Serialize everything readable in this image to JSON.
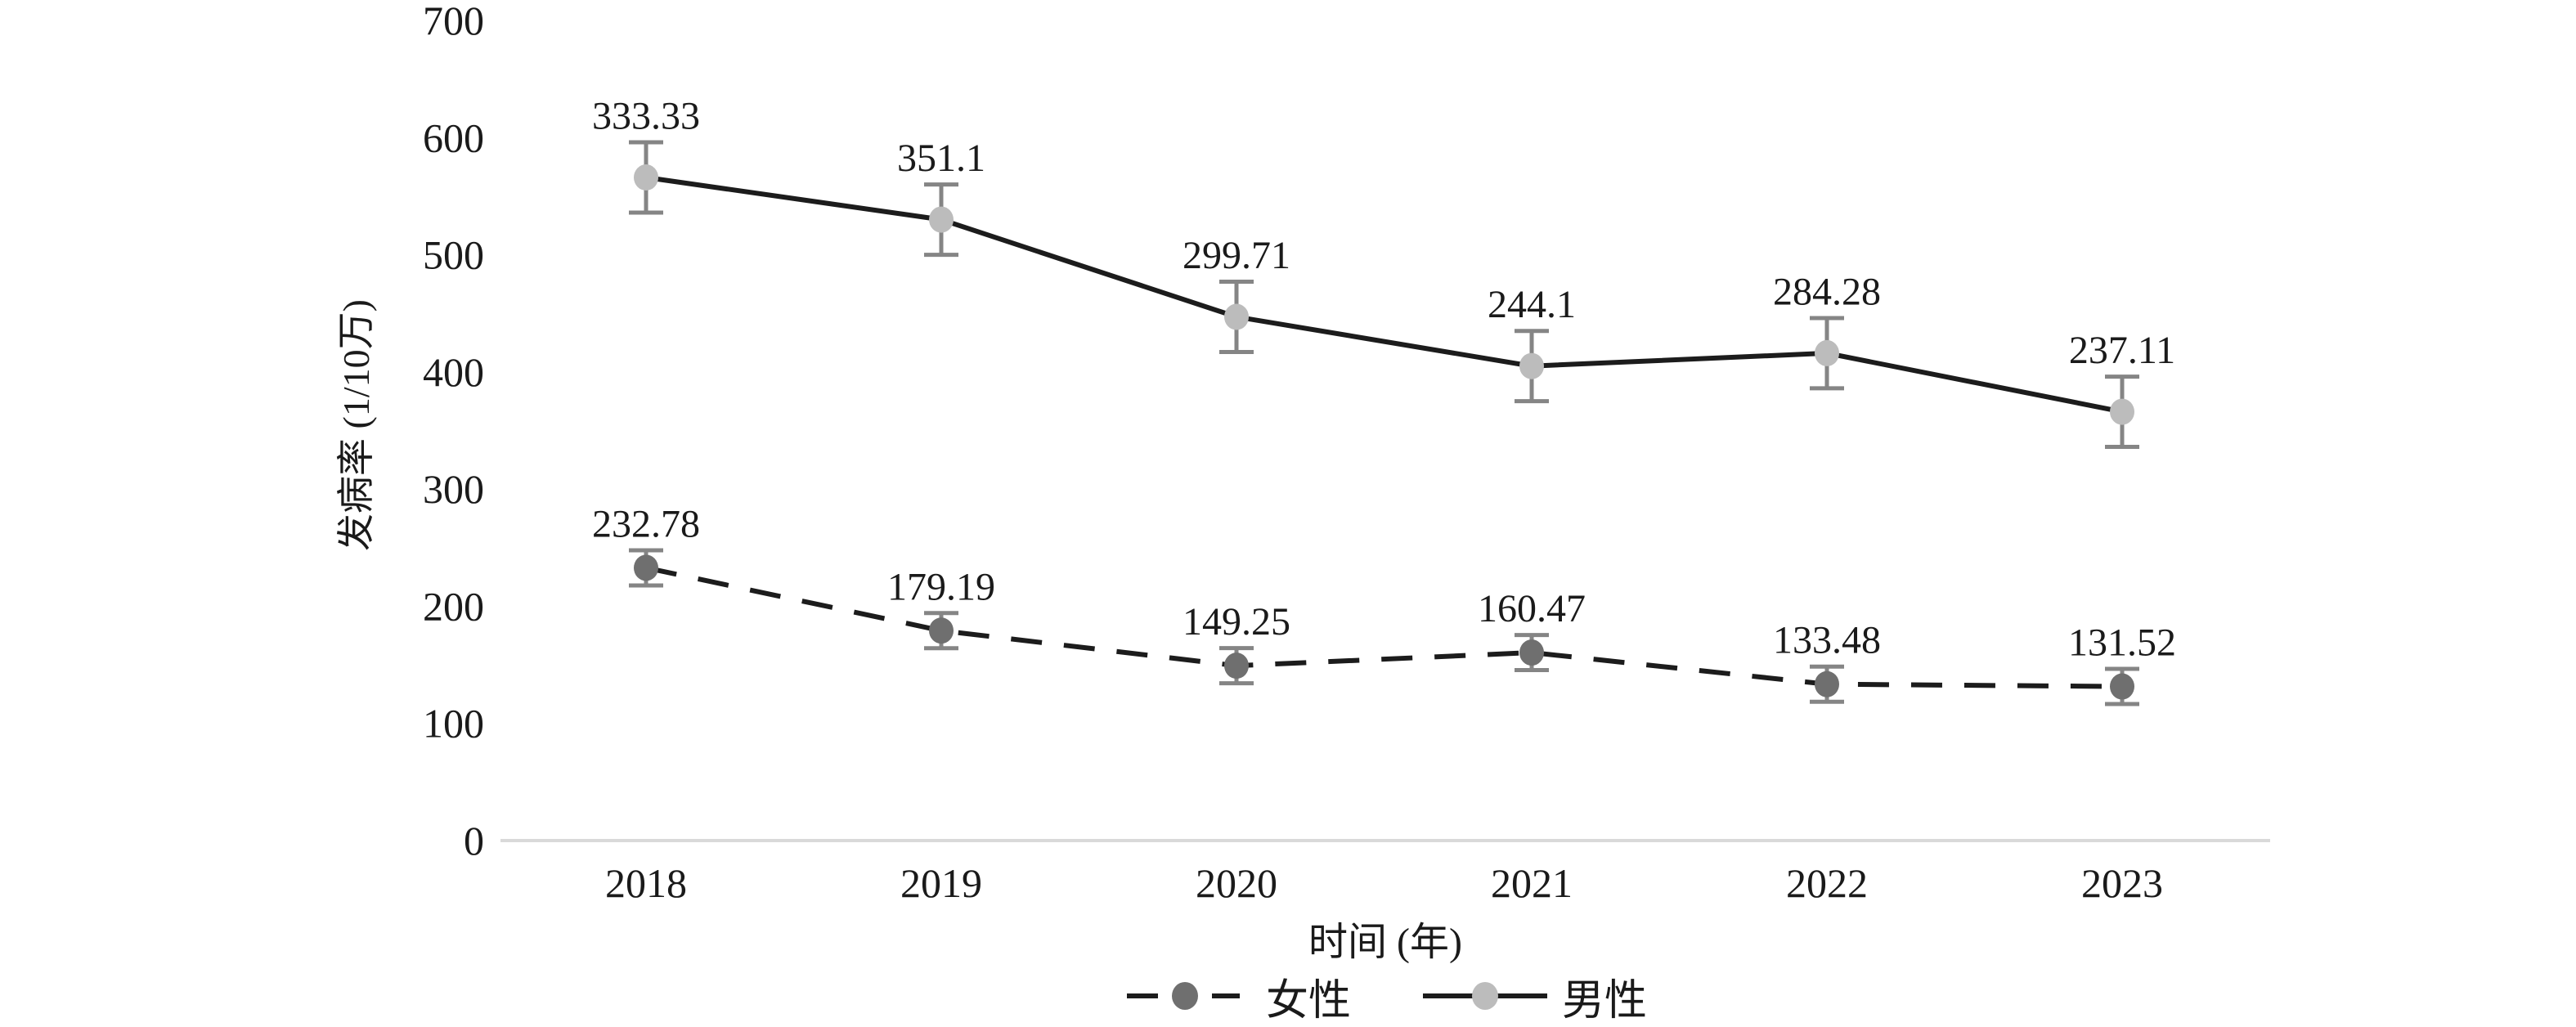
{
  "chart_data": {
    "type": "line",
    "title": "",
    "categories": [
      "2018",
      "2019",
      "2020",
      "2021",
      "2022",
      "2023"
    ],
    "series": [
      {
        "key": "female",
        "name": "女性",
        "values": [
          232.78,
          179.19,
          149.25,
          160.47,
          133.48,
          131.52
        ],
        "data_labels": [
          "232.78",
          "179.19",
          "149.25",
          "160.47",
          "133.48",
          "131.52"
        ],
        "plotted_values": [
          232.78,
          179.19,
          149.25,
          160.47,
          133.48,
          131.52
        ],
        "error": 15,
        "line_style": "dashed",
        "line_color": "#1c1c1c",
        "marker_color": "#6f6f6f"
      },
      {
        "key": "male",
        "name": "男性",
        "values": [
          333.33,
          351.1,
          299.71,
          244.1,
          284.28,
          237.11
        ],
        "data_labels": [
          "333.33",
          "351.1",
          "299.71",
          "244.1",
          "284.28",
          "237.11"
        ],
        "plotted_values": [
          566,
          530,
          447,
          405,
          416,
          366
        ],
        "error": 30,
        "line_style": "solid",
        "line_color": "#1c1c1c",
        "marker_color": "#bcbcbc"
      }
    ],
    "xlabel": "时间 (年)",
    "ylabel": "发病率 (1/10万)",
    "ylim": [
      0,
      700
    ],
    "y_ticks": [
      0,
      100,
      200,
      300,
      400,
      500,
      600,
      700
    ],
    "grid": false,
    "legend_position": "bottom",
    "colors": {
      "error_bar": "#858585",
      "axis_line": "#d9d9d9",
      "text": "#1a1a1a",
      "background": "#ffffff"
    }
  }
}
